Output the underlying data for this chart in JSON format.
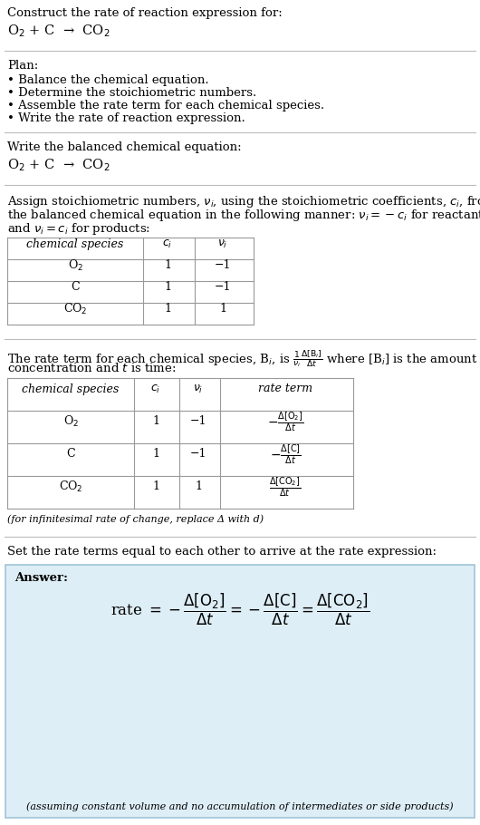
{
  "bg_color": "#ffffff",
  "text_color": "#000000",
  "answer_bg": "#deeef6",
  "answer_border": "#a0c4d8",
  "section_line_color": "#bbbbbb",
  "title_line1": "Construct the rate of reaction expression for:",
  "title_line2": "O$_2$ + C  →  CO$_2$",
  "plan_header": "Plan:",
  "plan_bullets": [
    "• Balance the chemical equation.",
    "• Determine the stoichiometric numbers.",
    "• Assemble the rate term for each chemical species.",
    "• Write the rate of reaction expression."
  ],
  "balanced_header": "Write the balanced chemical equation:",
  "balanced_eq": "O$_2$ + C  →  CO$_2$",
  "stoich_intro1": "Assign stoichiometric numbers, $\\nu_i$, using the stoichiometric coefficients, $c_i$, from",
  "stoich_intro2": "the balanced chemical equation in the following manner: $\\nu_i = -c_i$ for reactants",
  "stoich_intro3": "and $\\nu_i = c_i$ for products:",
  "table1_headers": [
    "chemical species",
    "$c_i$",
    "$\\nu_i$"
  ],
  "table1_rows": [
    [
      "O$_2$",
      "1",
      "−1"
    ],
    [
      "C",
      "1",
      "−1"
    ],
    [
      "CO$_2$",
      "1",
      "1"
    ]
  ],
  "rate_term_intro1": "The rate term for each chemical species, B$_i$, is $\\frac{1}{\\nu_i}\\frac{\\Delta[\\mathrm{B}_i]}{\\Delta t}$ where [B$_i$] is the amount",
  "rate_term_intro2": "concentration and $t$ is time:",
  "table2_headers": [
    "chemical species",
    "$c_i$",
    "$\\nu_i$",
    "rate term"
  ],
  "table2_rows": [
    [
      "O$_2$",
      "1",
      "−1",
      "$-\\frac{\\Delta[\\mathrm{O}_2]}{\\Delta t}$"
    ],
    [
      "C",
      "1",
      "−1",
      "$-\\frac{\\Delta[\\mathrm{C}]}{\\Delta t}$"
    ],
    [
      "CO$_2$",
      "1",
      "1",
      "$\\frac{\\Delta[\\mathrm{CO}_2]}{\\Delta t}$"
    ]
  ],
  "infinitesimal_note": "(for infinitesimal rate of change, replace Δ with d)",
  "set_equal_text": "Set the rate terms equal to each other to arrive at the rate expression:",
  "answer_label": "Answer:",
  "answer_eq": "rate $= -\\dfrac{\\Delta[\\mathrm{O}_2]}{\\Delta t} = -\\dfrac{\\Delta[\\mathrm{C}]}{\\Delta t} = \\dfrac{\\Delta[\\mathrm{CO}_2]}{\\Delta t}$",
  "answer_note": "(assuming constant volume and no accumulation of intermediates or side products)"
}
